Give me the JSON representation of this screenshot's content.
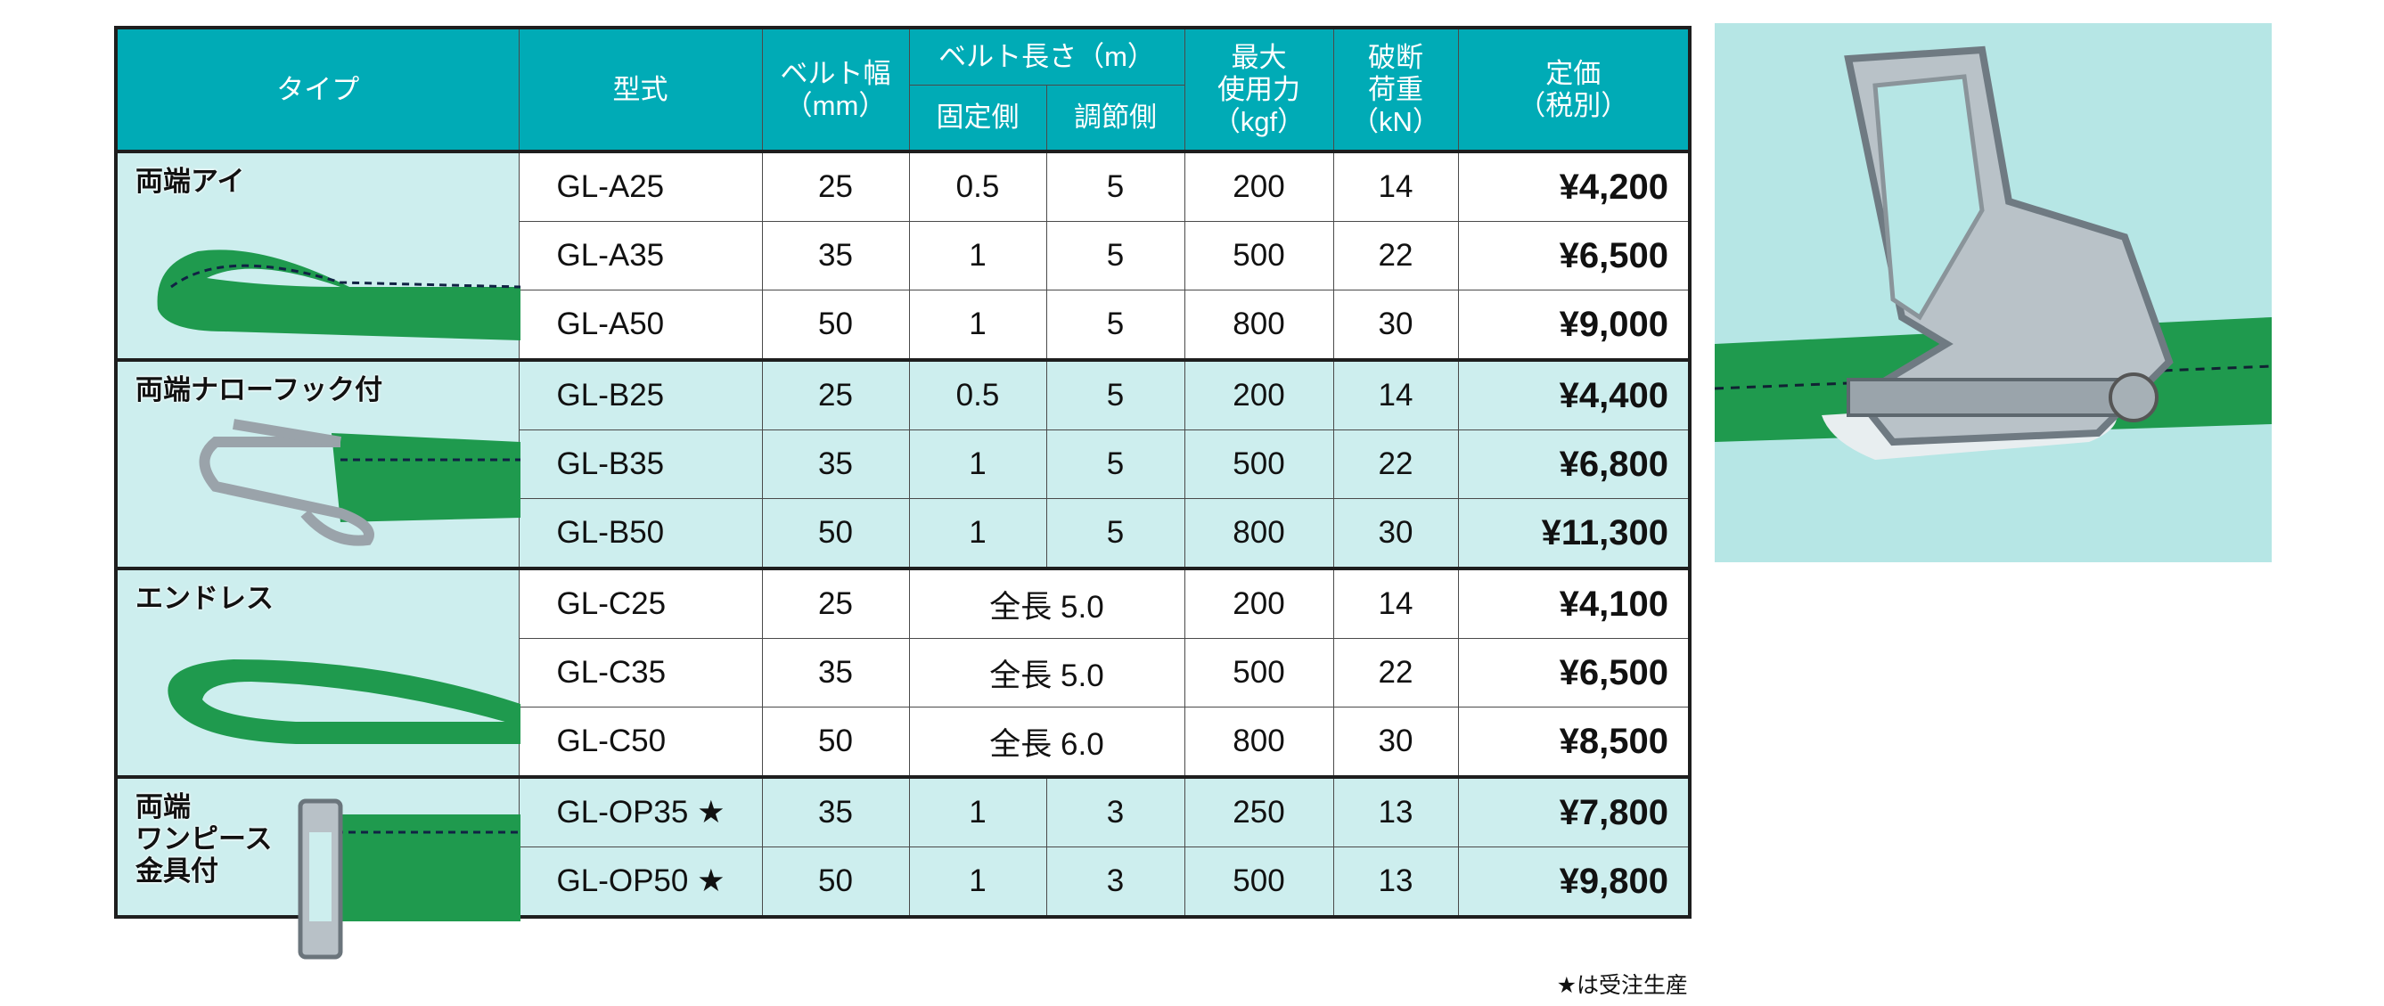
{
  "header": {
    "type": "タイプ",
    "model": "型式",
    "belt_width": "ベルト幅",
    "belt_width_unit": "（mm）",
    "belt_length": "ベルト長さ（m）",
    "fixed_side": "固定側",
    "adjust_side": "調節側",
    "max_force_1": "最大",
    "max_force_2": "使用力",
    "max_force_unit": "（kgf）",
    "break_1": "破断",
    "break_2": "荷重",
    "break_unit": "（kN）",
    "price_1": "定価",
    "price_2": "（税別）"
  },
  "groups": [
    {
      "type": "両端アイ",
      "image": "eye-strap",
      "shade": "white",
      "rows": [
        {
          "model": "GL-A25",
          "width": "25",
          "fixed": "0.5",
          "adjust": "5",
          "force": "200",
          "break": "14",
          "price": "¥4,200"
        },
        {
          "model": "GL-A35",
          "width": "35",
          "fixed": "1",
          "adjust": "5",
          "force": "500",
          "break": "22",
          "price": "¥6,500"
        },
        {
          "model": "GL-A50",
          "width": "50",
          "fixed": "1",
          "adjust": "5",
          "force": "800",
          "break": "30",
          "price": "¥9,000"
        }
      ]
    },
    {
      "type": "両端ナローフック付",
      "image": "hook-strap",
      "shade": "cyan",
      "rows": [
        {
          "model": "GL-B25",
          "width": "25",
          "fixed": "0.5",
          "adjust": "5",
          "force": "200",
          "break": "14",
          "price": "¥4,400"
        },
        {
          "model": "GL-B35",
          "width": "35",
          "fixed": "1",
          "adjust": "5",
          "force": "500",
          "break": "22",
          "price": "¥6,800"
        },
        {
          "model": "GL-B50",
          "width": "50",
          "fixed": "1",
          "adjust": "5",
          "force": "800",
          "break": "30",
          "price": "¥11,300"
        }
      ]
    },
    {
      "type": "エンドレス",
      "image": "endless-strap",
      "shade": "white",
      "rows": [
        {
          "model": "GL-C25",
          "width": "25",
          "total": "全長 5.0",
          "force": "200",
          "break": "14",
          "price": "¥4,100"
        },
        {
          "model": "GL-C35",
          "width": "35",
          "total": "全長 5.0",
          "force": "500",
          "break": "22",
          "price": "¥6,500"
        },
        {
          "model": "GL-C50",
          "width": "50",
          "total": "全長 6.0",
          "force": "800",
          "break": "30",
          "price": "¥8,500"
        }
      ]
    },
    {
      "type": "両端\nワンピース\n金具付",
      "image": "onepiece-strap",
      "shade": "cyan",
      "rows": [
        {
          "model": "GL-OP35 ★",
          "width": "35",
          "fixed": "1",
          "adjust": "3",
          "force": "250",
          "break": "13",
          "price": "¥7,800"
        },
        {
          "model": "GL-OP50 ★",
          "width": "50",
          "fixed": "1",
          "adjust": "3",
          "force": "500",
          "break": "13",
          "price": "¥9,800"
        }
      ]
    }
  ],
  "footnote": "★は受注生産",
  "photo": {
    "subject": "ratchet-buckle-photo"
  },
  "colors": {
    "header": "#00abb6",
    "light_cyan": "#cdeeee",
    "strap_green": "#1f9a4e",
    "photo_bg": "#b6e6e5"
  }
}
